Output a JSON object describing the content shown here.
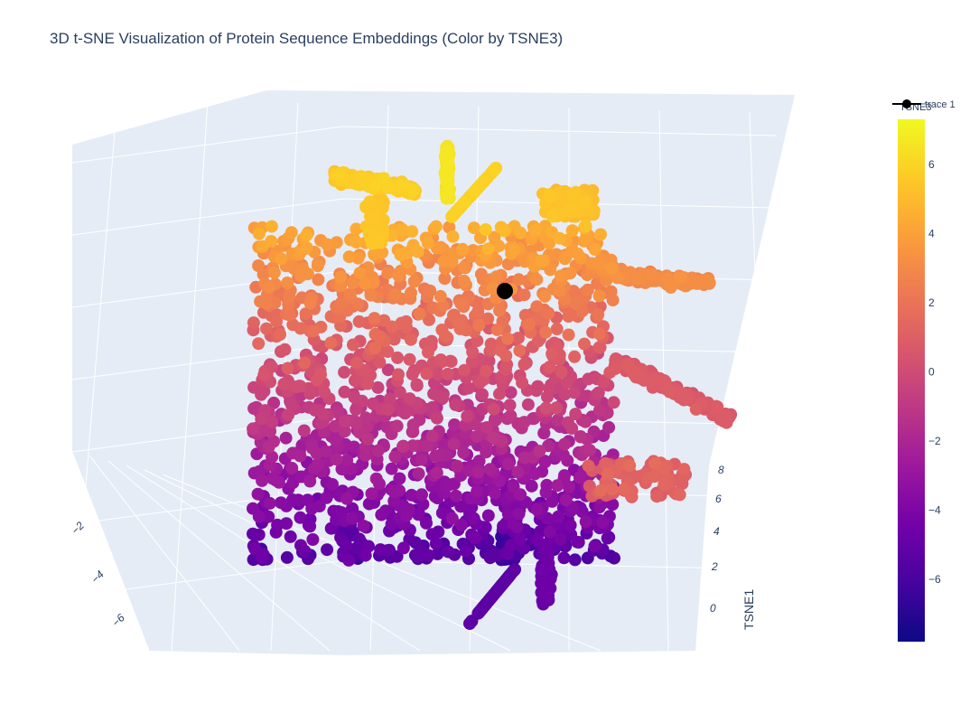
{
  "chart_data": {
    "type": "scatter",
    "title": "3D t-SNE Visualization of Protein Sequence Embeddings (Color by TSNE3)",
    "axes": {
      "x": {
        "title": "TSNE1",
        "ticks": [
          "0",
          "2",
          "4",
          "6",
          "8"
        ]
      },
      "y": {
        "title": "",
        "ticks": [
          "−2",
          "−4",
          "−6"
        ]
      }
    },
    "colorbar": {
      "title": "TSNE3",
      "range": [
        -7.8,
        7.3
      ],
      "ticks": [
        "6",
        "4",
        "2",
        "0",
        "−2",
        "−4",
        "−6"
      ],
      "tick_values": [
        6,
        4,
        2,
        0,
        -2,
        -4,
        -6
      ],
      "colorscale": [
        "#0d0887",
        "#46039f",
        "#7201a8",
        "#9c179e",
        "#bd3786",
        "#d8576b",
        "#ed7953",
        "#fb9f3a",
        "#fdca26",
        "#f0f921"
      ]
    },
    "legend": {
      "position": "top-right",
      "entries": [
        "trace 1"
      ]
    },
    "highlight_marker_color": "#000000"
  }
}
